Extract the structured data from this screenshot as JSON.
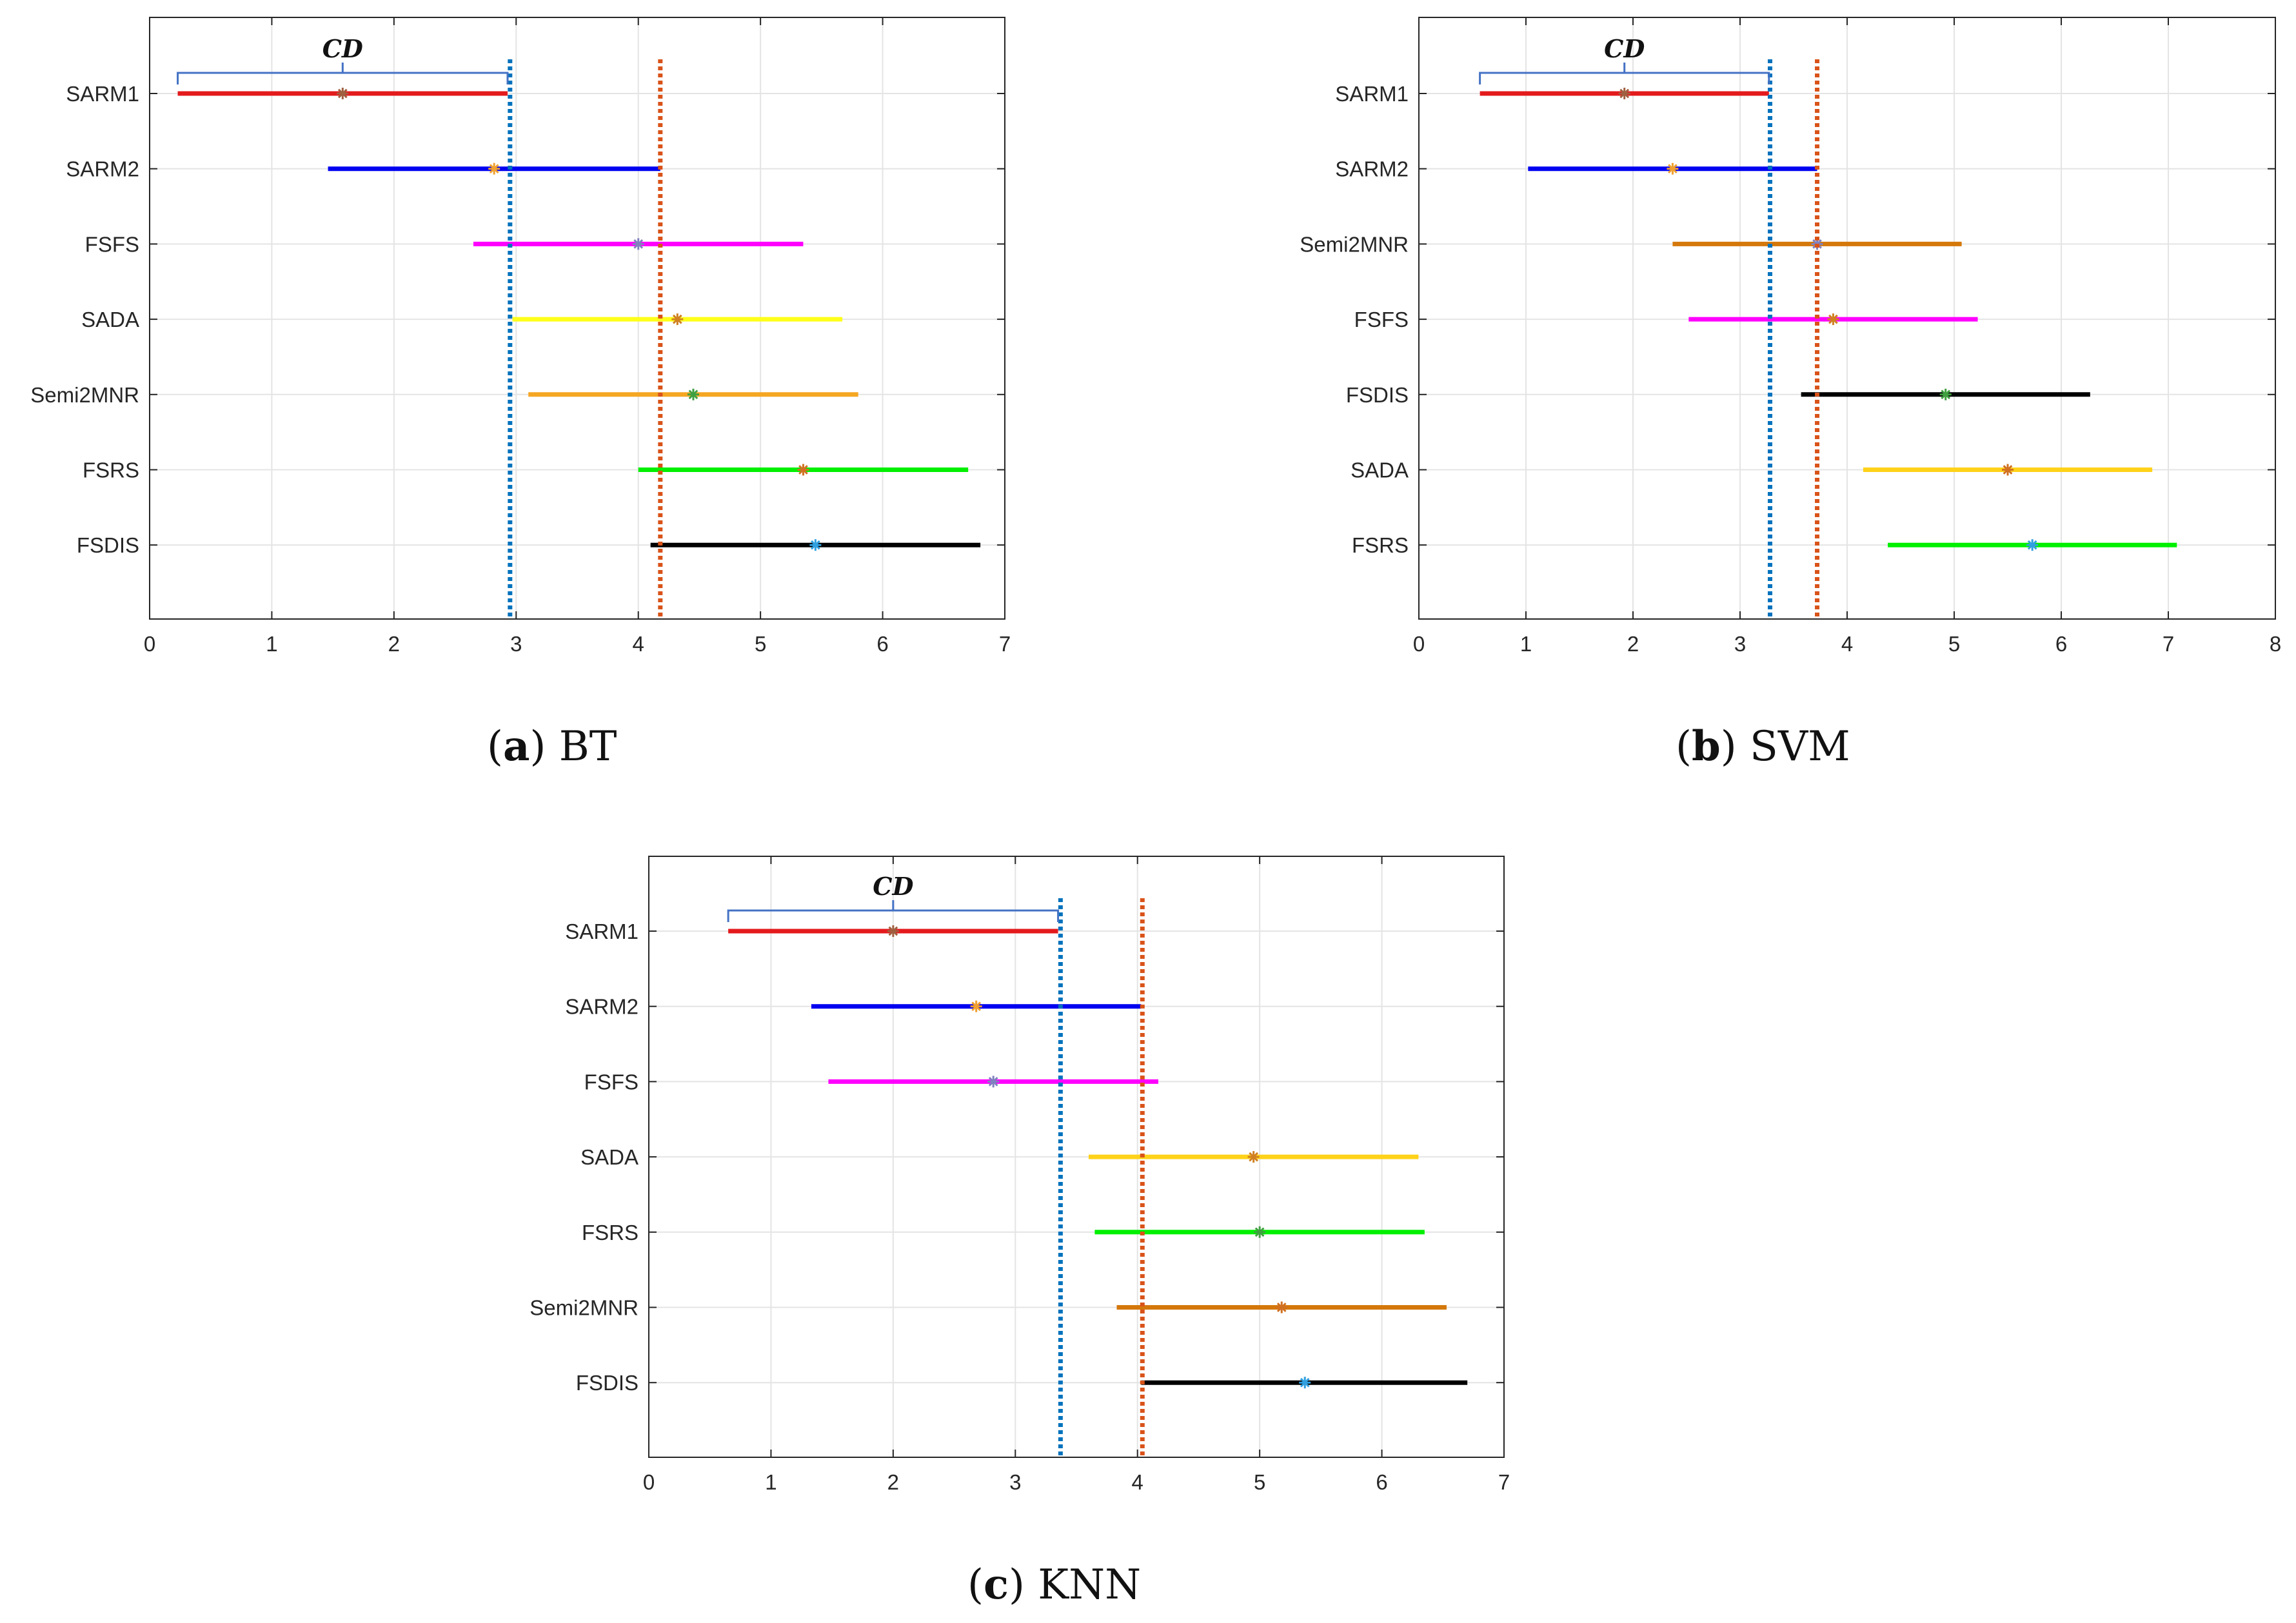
{
  "chart_data": [
    {
      "type": "interval",
      "caption_tag": "a",
      "caption_text": "BT",
      "cd_label": "CD",
      "xlim": [
        0,
        7
      ],
      "xticks": [
        0,
        1,
        2,
        3,
        4,
        5,
        6,
        7
      ],
      "grid": true,
      "cd_bracket": [
        0.23,
        2.93
      ],
      "vlines": [
        {
          "x": 2.95,
          "color": "#0072BD"
        },
        {
          "x": 4.18,
          "color": "#D95319"
        }
      ],
      "series": [
        {
          "name": "SARM1",
          "low": 0.23,
          "high": 2.93,
          "mean": 1.58,
          "color": "#E41A1C"
        },
        {
          "name": "SARM2",
          "low": 1.46,
          "high": 4.18,
          "mean": 2.82,
          "color": "#0000F0"
        },
        {
          "name": "FSFS",
          "low": 2.65,
          "high": 5.35,
          "mean": 4.0,
          "color": "#FF00FF"
        },
        {
          "name": "SADA",
          "low": 2.97,
          "high": 5.67,
          "mean": 4.32,
          "color": "#FFFF1A"
        },
        {
          "name": "Semi2MNR",
          "low": 3.1,
          "high": 5.8,
          "mean": 4.45,
          "color": "#F5A623"
        },
        {
          "name": "FSRS",
          "low": 4.0,
          "high": 6.7,
          "mean": 5.35,
          "color": "#00F000"
        },
        {
          "name": "FSDIS",
          "low": 4.1,
          "high": 6.8,
          "mean": 5.45,
          "color": "#000000"
        }
      ]
    },
    {
      "type": "interval",
      "caption_tag": "b",
      "caption_text": "SVM",
      "cd_label": "CD",
      "xlim": [
        0,
        8
      ],
      "xticks": [
        0,
        1,
        2,
        3,
        4,
        5,
        6,
        7,
        8
      ],
      "grid": true,
      "cd_bracket": [
        0.57,
        3.27
      ],
      "vlines": [
        {
          "x": 3.28,
          "color": "#0072BD"
        },
        {
          "x": 3.72,
          "color": "#D95319"
        }
      ],
      "series": [
        {
          "name": "SARM1",
          "low": 0.57,
          "high": 3.27,
          "mean": 1.92,
          "color": "#E41A1C"
        },
        {
          "name": "SARM2",
          "low": 1.02,
          "high": 3.72,
          "mean": 2.37,
          "color": "#0000F0"
        },
        {
          "name": "Semi2MNR",
          "low": 2.37,
          "high": 5.07,
          "mean": 3.72,
          "color": "#D4780B"
        },
        {
          "name": "FSFS",
          "low": 2.52,
          "high": 5.22,
          "mean": 3.87,
          "color": "#FF00FF"
        },
        {
          "name": "FSDIS",
          "low": 3.57,
          "high": 6.27,
          "mean": 4.92,
          "color": "#000000"
        },
        {
          "name": "SADA",
          "low": 4.15,
          "high": 6.85,
          "mean": 5.5,
          "color": "#FFD21A"
        },
        {
          "name": "FSRS",
          "low": 4.38,
          "high": 7.08,
          "mean": 5.73,
          "color": "#00F000"
        }
      ]
    },
    {
      "type": "interval",
      "caption_tag": "c",
      "caption_text": "KNN",
      "cd_label": "CD",
      "xlim": [
        0,
        7
      ],
      "xticks": [
        0,
        1,
        2,
        3,
        4,
        5,
        6,
        7
      ],
      "grid": true,
      "cd_bracket": [
        0.65,
        3.35
      ],
      "vlines": [
        {
          "x": 3.37,
          "color": "#0072BD"
        },
        {
          "x": 4.04,
          "color": "#D95319"
        }
      ],
      "series": [
        {
          "name": "SARM1",
          "low": 0.65,
          "high": 3.35,
          "mean": 2.0,
          "color": "#E41A1C"
        },
        {
          "name": "SARM2",
          "low": 1.33,
          "high": 4.03,
          "mean": 2.68,
          "color": "#0000F0"
        },
        {
          "name": "FSFS",
          "low": 1.47,
          "high": 4.17,
          "mean": 2.82,
          "color": "#FF00FF"
        },
        {
          "name": "SADA",
          "low": 3.6,
          "high": 6.3,
          "mean": 4.95,
          "color": "#FFD21A"
        },
        {
          "name": "FSRS",
          "low": 3.65,
          "high": 6.35,
          "mean": 5.0,
          "color": "#00F000"
        },
        {
          "name": "Semi2MNR",
          "low": 3.83,
          "high": 6.53,
          "mean": 5.18,
          "color": "#D4780B"
        },
        {
          "name": "FSDIS",
          "low": 4.03,
          "high": 6.7,
          "mean": 5.37,
          "color": "#000000"
        }
      ]
    }
  ]
}
